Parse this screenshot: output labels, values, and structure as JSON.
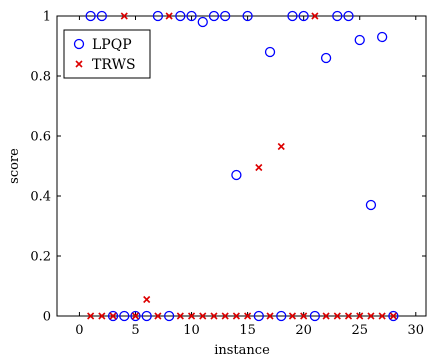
{
  "chart_data": {
    "type": "scatter",
    "title": "",
    "xlabel": "instance",
    "ylabel": "score",
    "xlim": [
      -2,
      31
    ],
    "ylim": [
      0,
      1
    ],
    "xticks": [
      0,
      5,
      10,
      15,
      20,
      25,
      30
    ],
    "yticks": [
      0,
      0.2,
      0.4,
      0.6,
      0.8,
      1
    ],
    "ytick_labels": [
      "0",
      "0.2",
      "0.4",
      "0.6",
      "0.8",
      "1"
    ],
    "grid": false,
    "legend_position": "top-left",
    "series": [
      {
        "name": "LPQP",
        "marker": "circle",
        "color": "#0000ff",
        "x": [
          1,
          2,
          3,
          4,
          5,
          6,
          7,
          8,
          9,
          10,
          11,
          12,
          13,
          14,
          15,
          16,
          17,
          18,
          19,
          20,
          21,
          22,
          23,
          24,
          25,
          26,
          27,
          28
        ],
        "y": [
          1,
          1,
          0,
          0,
          0,
          0,
          1,
          0,
          1,
          1,
          0.98,
          1,
          1,
          0.47,
          1,
          0,
          0.88,
          0,
          1,
          1,
          0,
          0.86,
          1,
          1,
          0.92,
          0.37,
          0.93,
          0
        ]
      },
      {
        "name": "TRWS",
        "marker": "cross",
        "color": "#dd0000",
        "x": [
          1,
          2,
          3,
          4,
          5,
          6,
          7,
          8,
          9,
          10,
          11,
          12,
          13,
          14,
          15,
          16,
          17,
          18,
          19,
          20,
          21,
          22,
          23,
          24,
          25,
          26,
          27,
          28
        ],
        "y": [
          0,
          0,
          0,
          1,
          0,
          0.055,
          0,
          1,
          0,
          0,
          0,
          0,
          0,
          0,
          0,
          0.495,
          0,
          0.565,
          0,
          0,
          1,
          0,
          0,
          0,
          0,
          0,
          0,
          0
        ]
      }
    ]
  }
}
